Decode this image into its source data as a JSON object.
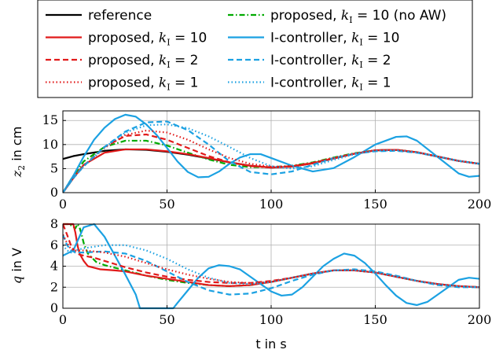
{
  "chart_data": [
    {
      "type": "line",
      "ylabel": "z2 in cm",
      "xlim": [
        0,
        200
      ],
      "ylim": [
        0,
        17
      ],
      "xticks": [
        0,
        50,
        100,
        150,
        200
      ],
      "yticks": [
        0,
        5,
        10,
        15
      ],
      "grid": true,
      "series": [
        {
          "name": "reference",
          "color": "#000000",
          "dash": "solid",
          "x": [
            0,
            5,
            10,
            20,
            30,
            40,
            50,
            60,
            70,
            80,
            90,
            100,
            110,
            120,
            130,
            140,
            150,
            160,
            170,
            180,
            190,
            200
          ],
          "y": [
            7.0,
            7.6,
            8.0,
            8.7,
            9.0,
            8.9,
            8.5,
            7.9,
            7.1,
            6.3,
            5.6,
            5.2,
            5.4,
            6.1,
            7.1,
            8.1,
            8.8,
            8.9,
            8.4,
            7.5,
            6.6,
            6.0
          ]
        },
        {
          "name": "proposed, kI = 10 (no AW)",
          "color": "#00aa00",
          "dash": "dashdot",
          "x": [
            0,
            5,
            10,
            20,
            30,
            40,
            50,
            60,
            70,
            80,
            90,
            100,
            110,
            120,
            130,
            140,
            150,
            160,
            170,
            180,
            190,
            200
          ],
          "y": [
            0,
            3.5,
            6.5,
            9.5,
            10.8,
            10.8,
            9.8,
            8.3,
            6.9,
            5.8,
            5.3,
            5.3,
            5.6,
            6.3,
            7.3,
            8.2,
            8.8,
            8.9,
            8.4,
            7.5,
            6.6,
            6.0
          ]
        },
        {
          "name": "proposed, kI = 10",
          "color": "#e11a1a",
          "dash": "solid",
          "x": [
            0,
            5,
            10,
            20,
            30,
            40,
            50,
            60,
            70,
            80,
            90,
            100,
            110,
            120,
            130,
            140,
            150,
            160,
            170,
            180,
            190,
            200
          ],
          "y": [
            0,
            3.0,
            5.8,
            8.3,
            9.0,
            9.0,
            8.6,
            8.0,
            7.2,
            6.3,
            5.6,
            5.2,
            5.4,
            6.1,
            7.1,
            8.1,
            8.8,
            8.9,
            8.4,
            7.5,
            6.6,
            6.0
          ]
        },
        {
          "name": "I-controller, kI = 10",
          "color": "#1ba1e2",
          "dash": "solid",
          "x": [
            0,
            5,
            10,
            15,
            20,
            25,
            30,
            35,
            40,
            45,
            50,
            55,
            60,
            65,
            70,
            75,
            80,
            85,
            90,
            95,
            100,
            110,
            120,
            130,
            140,
            150,
            160,
            165,
            170,
            180,
            190,
            195,
            200
          ],
          "y": [
            0,
            3.5,
            7.5,
            11.0,
            13.5,
            15.3,
            16.2,
            15.8,
            14.2,
            12.0,
            9.3,
            6.5,
            4.3,
            3.2,
            3.3,
            4.4,
            6.0,
            7.3,
            8.0,
            8.0,
            7.2,
            5.6,
            4.4,
            5.1,
            7.4,
            10.0,
            11.6,
            11.7,
            10.8,
            7.4,
            4.0,
            3.3,
            3.5
          ]
        },
        {
          "name": "proposed, kI = 2",
          "color": "#e11a1a",
          "dash": "dashed",
          "x": [
            0,
            5,
            10,
            20,
            30,
            40,
            50,
            60,
            70,
            80,
            90,
            100,
            110,
            120,
            130,
            140,
            150,
            160,
            170,
            180,
            190,
            200
          ],
          "y": [
            0,
            3.0,
            5.6,
            9.5,
            11.8,
            12.1,
            11.0,
            9.3,
            7.6,
            6.3,
            5.5,
            5.3,
            5.5,
            6.2,
            7.2,
            8.1,
            8.8,
            8.9,
            8.4,
            7.5,
            6.6,
            6.0
          ]
        },
        {
          "name": "I-controller, kI = 2",
          "color": "#1ba1e2",
          "dash": "dashed",
          "x": [
            0,
            5,
            10,
            20,
            30,
            40,
            50,
            60,
            70,
            80,
            90,
            100,
            110,
            120,
            130,
            140,
            150,
            160,
            170,
            180,
            190,
            200
          ],
          "y": [
            0,
            3.0,
            5.5,
            9.5,
            12.7,
            14.6,
            14.8,
            13.0,
            10.0,
            6.5,
            4.3,
            3.8,
            4.4,
            5.8,
            7.2,
            8.1,
            8.6,
            8.7,
            8.3,
            7.5,
            6.6,
            6.0
          ]
        },
        {
          "name": "proposed, kI = 1",
          "color": "#e11a1a",
          "dash": "dotted",
          "x": [
            0,
            5,
            10,
            20,
            30,
            40,
            50,
            60,
            70,
            80,
            90,
            100,
            110,
            120,
            130,
            140,
            150,
            160,
            170,
            180,
            190,
            200
          ],
          "y": [
            0,
            3.0,
            5.5,
            9.3,
            12.0,
            12.9,
            12.5,
            11.0,
            9.0,
            7.2,
            6.0,
            5.4,
            5.5,
            6.2,
            7.2,
            8.1,
            8.8,
            8.9,
            8.4,
            7.5,
            6.6,
            6.0
          ]
        },
        {
          "name": "I-controller, kI = 1",
          "color": "#1ba1e2",
          "dash": "dotted",
          "x": [
            0,
            5,
            10,
            20,
            30,
            40,
            50,
            60,
            70,
            80,
            90,
            100,
            110,
            120,
            130,
            140,
            150,
            160,
            170,
            180,
            190,
            200
          ],
          "y": [
            0,
            3.0,
            5.5,
            9.4,
            12.5,
            14.0,
            14.2,
            13.4,
            11.7,
            9.5,
            7.2,
            5.5,
            5.0,
            5.5,
            6.8,
            8.0,
            8.7,
            8.8,
            8.4,
            7.5,
            6.6,
            6.0
          ]
        }
      ]
    },
    {
      "type": "line",
      "ylabel": "q in V",
      "xlabel": "t in s",
      "xlim": [
        0,
        200
      ],
      "ylim": [
        0,
        8
      ],
      "xticks": [
        0,
        50,
        100,
        150,
        200
      ],
      "yticks": [
        0,
        2,
        4,
        6,
        8
      ],
      "grid": true,
      "series": [
        {
          "name": "proposed, kI = 10 (no AW)",
          "color": "#00aa00",
          "dash": "dashdot",
          "x": [
            0,
            3,
            6,
            7,
            8,
            9,
            10,
            12,
            14,
            16,
            20,
            30,
            40,
            50,
            60,
            70,
            80,
            90,
            100,
            110,
            120,
            130,
            140,
            150,
            160,
            170,
            180,
            190,
            200
          ],
          "y": [
            8,
            8,
            7.6,
            8,
            7.7,
            7.0,
            6.2,
            5.2,
            4.8,
            4.4,
            4.1,
            3.6,
            3.1,
            2.7,
            2.4,
            2.2,
            2.1,
            2.2,
            2.5,
            2.9,
            3.3,
            3.6,
            3.6,
            3.4,
            3.0,
            2.6,
            2.3,
            2.1,
            2.0
          ]
        },
        {
          "name": "proposed, kI = 10",
          "color": "#e11a1a",
          "dash": "solid",
          "x": [
            0,
            4,
            5,
            6,
            7,
            8,
            10,
            12,
            14,
            18,
            25,
            30,
            40,
            50,
            60,
            70,
            80,
            90,
            100,
            110,
            120,
            130,
            140,
            150,
            160,
            170,
            180,
            190,
            200
          ],
          "y": [
            8,
            8,
            8,
            7.2,
            6.0,
            5.2,
            4.5,
            4.0,
            3.9,
            3.7,
            3.6,
            3.5,
            3.1,
            2.8,
            2.5,
            2.2,
            2.1,
            2.2,
            2.5,
            2.9,
            3.3,
            3.6,
            3.6,
            3.4,
            3.0,
            2.6,
            2.3,
            2.1,
            2.0
          ]
        },
        {
          "name": "I-controller, kI = 10",
          "color": "#1ba1e2",
          "dash": "solid",
          "x": [
            0,
            5,
            10,
            15,
            20,
            25,
            30,
            35,
            37,
            40,
            45,
            50,
            53,
            55,
            60,
            65,
            70,
            75,
            80,
            85,
            90,
            95,
            100,
            105,
            110,
            115,
            120,
            125,
            130,
            135,
            140,
            145,
            150,
            155,
            160,
            165,
            170,
            175,
            180,
            185,
            190,
            195,
            200
          ],
          "y": [
            5.0,
            5.5,
            7.7,
            8.0,
            6.8,
            5.0,
            3.2,
            1.3,
            0,
            0,
            0,
            0,
            0,
            0.5,
            1.7,
            2.9,
            3.8,
            4.1,
            4.0,
            3.7,
            3.0,
            2.3,
            1.6,
            1.2,
            1.3,
            2.0,
            3.0,
            4.0,
            4.7,
            5.2,
            5.0,
            4.3,
            3.3,
            2.2,
            1.2,
            0.5,
            0.3,
            0.6,
            1.3,
            2.0,
            2.7,
            2.9,
            2.8
          ]
        },
        {
          "name": "proposed, kI = 2",
          "color": "#e11a1a",
          "dash": "dashed",
          "x": [
            0,
            2,
            4,
            6,
            8,
            10,
            15,
            20,
            30,
            40,
            50,
            60,
            70,
            80,
            90,
            100,
            110,
            120,
            130,
            140,
            150,
            160,
            170,
            180,
            190,
            200
          ],
          "y": [
            8,
            7.0,
            5.9,
            5.3,
            5.1,
            5.0,
            4.8,
            4.5,
            3.9,
            3.4,
            3.0,
            2.7,
            2.5,
            2.4,
            2.4,
            2.6,
            2.9,
            3.3,
            3.6,
            3.6,
            3.4,
            3.0,
            2.6,
            2.3,
            2.1,
            2.0
          ]
        },
        {
          "name": "I-controller, kI = 2",
          "color": "#1ba1e2",
          "dash": "dashed",
          "x": [
            0,
            2,
            4,
            6,
            10,
            20,
            30,
            40,
            50,
            60,
            70,
            80,
            90,
            100,
            110,
            120,
            130,
            140,
            150,
            160,
            170,
            180,
            190,
            200
          ],
          "y": [
            7.0,
            6.0,
            5.5,
            5.3,
            5.3,
            5.4,
            5.2,
            4.5,
            3.5,
            2.5,
            1.7,
            1.3,
            1.4,
            1.9,
            2.6,
            3.2,
            3.6,
            3.7,
            3.5,
            3.1,
            2.6,
            2.2,
            2.0,
            2.0
          ]
        },
        {
          "name": "proposed, kI = 1",
          "color": "#e11a1a",
          "dash": "dotted",
          "x": [
            0,
            2,
            4,
            6,
            10,
            20,
            30,
            40,
            50,
            60,
            70,
            80,
            90,
            100,
            110,
            120,
            130,
            140,
            150,
            160,
            170,
            180,
            190,
            200
          ],
          "y": [
            7.0,
            6.2,
            5.6,
            5.5,
            5.5,
            5.3,
            4.9,
            4.3,
            3.7,
            3.2,
            2.8,
            2.5,
            2.4,
            2.5,
            2.9,
            3.3,
            3.6,
            3.6,
            3.4,
            3.0,
            2.6,
            2.3,
            2.1,
            2.0
          ]
        },
        {
          "name": "I-controller, kI = 1",
          "color": "#1ba1e2",
          "dash": "dotted",
          "x": [
            0,
            2,
            4,
            6,
            10,
            20,
            30,
            40,
            50,
            60,
            70,
            80,
            90,
            100,
            110,
            120,
            130,
            140,
            150,
            160,
            170,
            180,
            190,
            200
          ],
          "y": [
            6.0,
            5.5,
            5.3,
            5.5,
            5.7,
            6.0,
            6.0,
            5.5,
            4.7,
            3.7,
            2.9,
            2.4,
            2.3,
            2.5,
            2.9,
            3.3,
            3.6,
            3.6,
            3.4,
            3.0,
            2.6,
            2.3,
            2.1,
            2.0
          ]
        },
        {
          "name": "reference",
          "color": "#000000",
          "dash": "solid",
          "x": [],
          "y": []
        }
      ]
    }
  ],
  "legend": {
    "items": [
      {
        "label": "reference",
        "color": "#000000",
        "dash": "solid"
      },
      {
        "label": "proposed, kI = 10 (no AW)",
        "color": "#00aa00",
        "dash": "dashdot"
      },
      {
        "label": "proposed, kI = 10",
        "color": "#e11a1a",
        "dash": "solid"
      },
      {
        "label": "I-controller, kI = 10",
        "color": "#1ba1e2",
        "dash": "solid"
      },
      {
        "label": "proposed, kI = 2",
        "color": "#e11a1a",
        "dash": "dashed"
      },
      {
        "label": "I-controller, kI = 2",
        "color": "#1ba1e2",
        "dash": "dashed"
      },
      {
        "label": "proposed, kI = 1",
        "color": "#e11a1a",
        "dash": "dotted"
      },
      {
        "label": "I-controller, kI = 1",
        "color": "#1ba1e2",
        "dash": "dotted"
      }
    ]
  },
  "labels": {
    "top_ylabel": "z2 in cm",
    "bottom_ylabel": "q in V",
    "xlabel": "t in s"
  }
}
